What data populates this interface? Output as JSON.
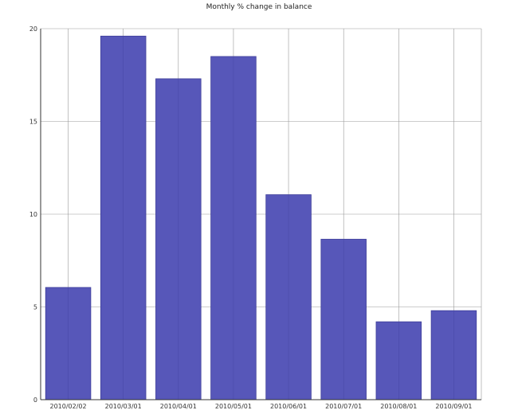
{
  "chart_data": {
    "type": "bar",
    "title": "Monthly % change in balance",
    "xlabel": "",
    "ylabel": "",
    "categories": [
      "2010/02/02",
      "2010/03/01",
      "2010/04/01",
      "2010/05/01",
      "2010/06/01",
      "2010/07/01",
      "2010/08/01",
      "2010/09/01"
    ],
    "values": [
      6.05,
      19.6,
      17.3,
      18.5,
      11.05,
      8.65,
      4.2,
      4.8
    ],
    "ylim": [
      0,
      20
    ],
    "yticks": [
      0,
      5,
      10,
      15,
      20
    ],
    "grid": true,
    "legend": "none",
    "colors": {
      "bar_fill": "#5757b9",
      "bar_stroke": "#3f3f9a",
      "grid": "#999999",
      "axis": "#333333"
    }
  }
}
